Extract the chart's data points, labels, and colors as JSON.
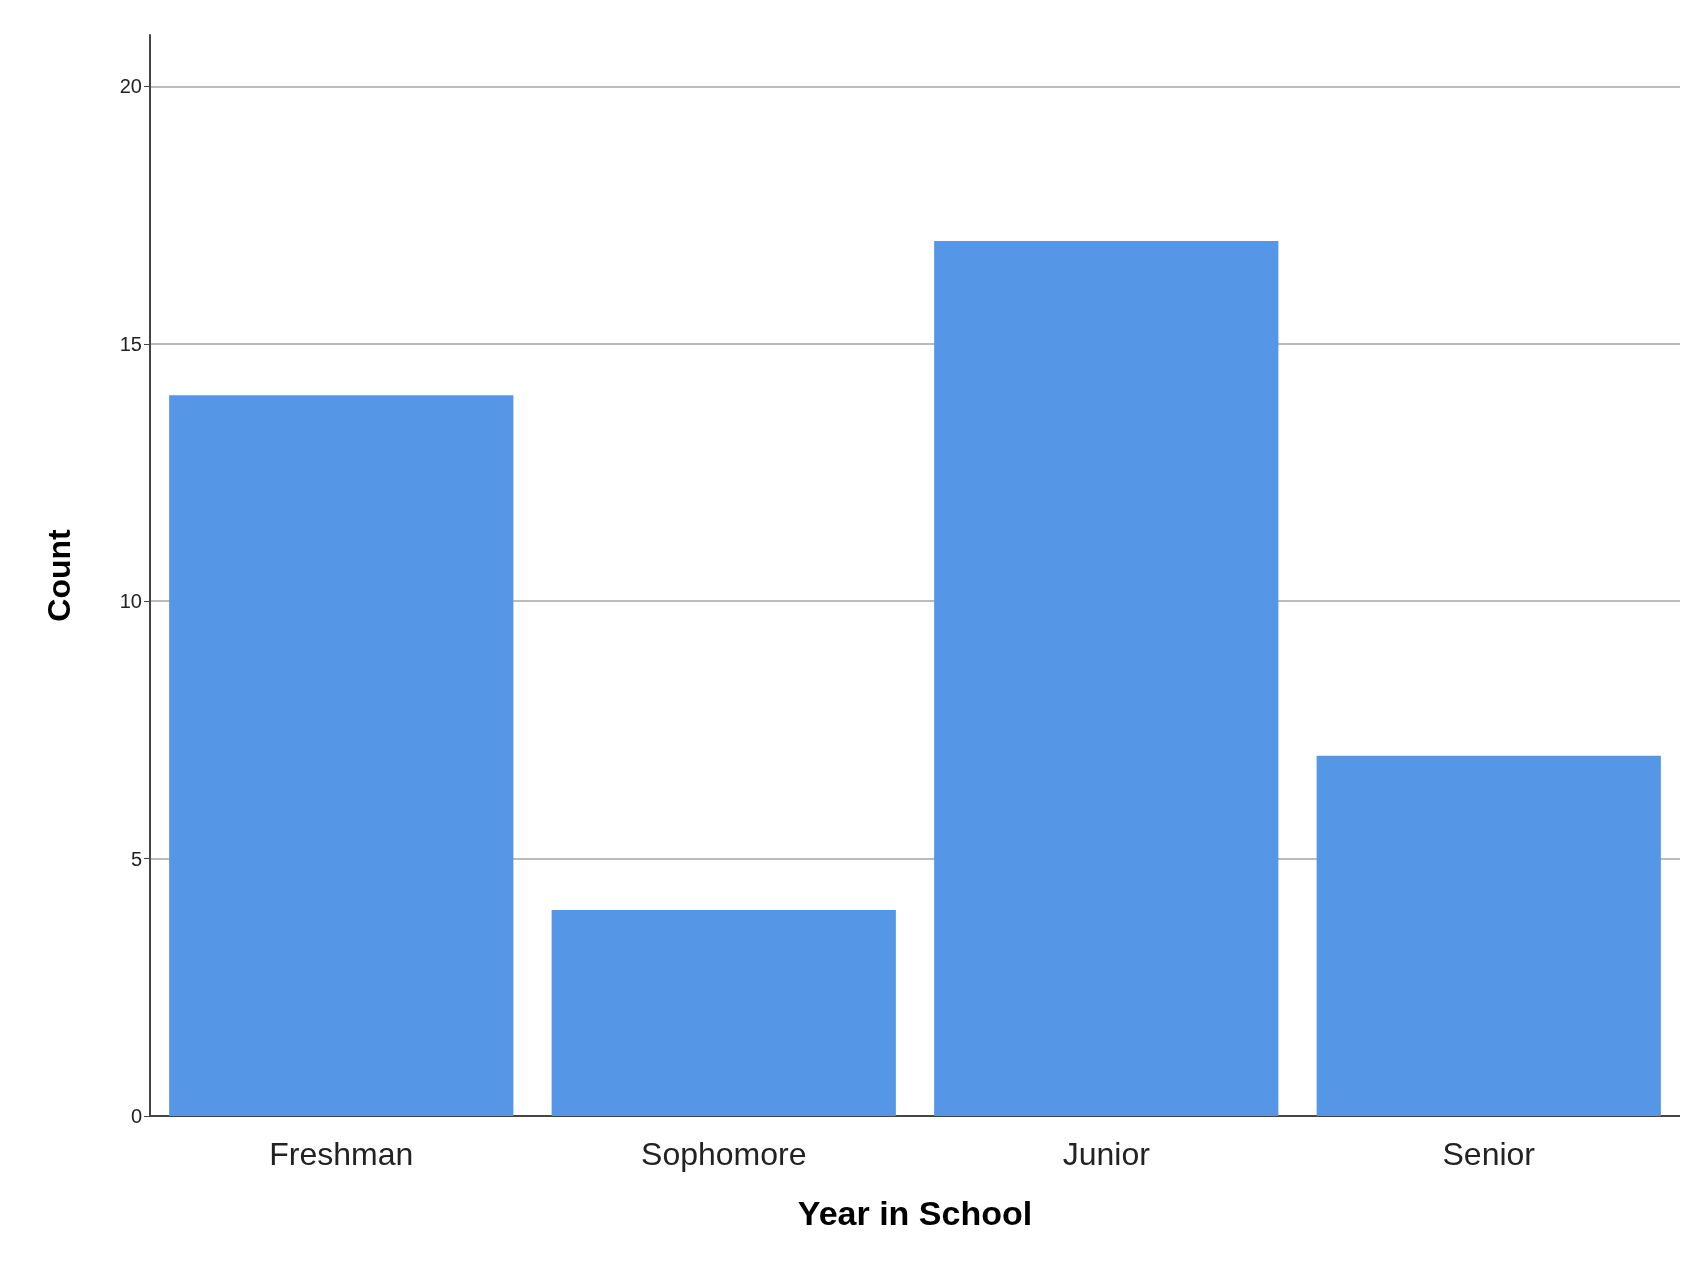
{
  "chart_data": {
    "type": "bar",
    "xlabel": "Year in School",
    "ylabel": "Count",
    "categories": [
      "Freshman",
      "Sophomore",
      "Junior",
      "Senior"
    ],
    "values": [
      14,
      4,
      17,
      7
    ],
    "color": "#5596e6",
    "ylim": [
      0,
      21
    ],
    "yticks": [
      0,
      5,
      10,
      15,
      20
    ],
    "grid": "y"
  }
}
